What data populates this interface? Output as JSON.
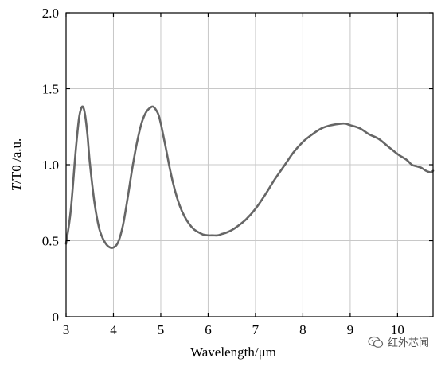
{
  "chart_data": {
    "type": "line",
    "title": "",
    "xlabel": "Wavelength/μm",
    "ylabel_italic": "T",
    "ylabel_rest": "/T0 /a.u.",
    "xlim": [
      3,
      10.75
    ],
    "ylim": [
      0,
      2.0
    ],
    "x_ticks": [
      3,
      4,
      5,
      6,
      7,
      8,
      9,
      10
    ],
    "x_tick_labels": [
      "3",
      "4",
      "5",
      "6",
      "7",
      "8",
      "9",
      "10"
    ],
    "y_ticks": [
      0,
      0.5,
      1.0,
      1.5,
      2.0
    ],
    "y_tick_labels": [
      "0",
      "0.5",
      "1.0",
      "1.5",
      "2.0"
    ],
    "grid": true,
    "line_color": "#666666",
    "series": [
      {
        "x": [
          3.0,
          3.1,
          3.2,
          3.27,
          3.32,
          3.36,
          3.4,
          3.45,
          3.5,
          3.6,
          3.7,
          3.8,
          3.9,
          4.0,
          4.1,
          4.2,
          4.3,
          4.4,
          4.5,
          4.6,
          4.7,
          4.8,
          4.85,
          4.9,
          4.95,
          5.0,
          5.1,
          5.2,
          5.3,
          5.4,
          5.5,
          5.6,
          5.7,
          5.8,
          5.9,
          6.0,
          6.1,
          6.2,
          6.3,
          6.4,
          6.5,
          6.6,
          6.8,
          7.0,
          7.2,
          7.4,
          7.6,
          7.8,
          8.0,
          8.2,
          8.4,
          8.6,
          8.8,
          8.9,
          9.0,
          9.2,
          9.4,
          9.6,
          9.8,
          10.0,
          10.1,
          10.2,
          10.3,
          10.4,
          10.5,
          10.6,
          10.7,
          10.75
        ],
        "y": [
          0.48,
          0.7,
          1.08,
          1.3,
          1.37,
          1.38,
          1.33,
          1.2,
          1.02,
          0.75,
          0.58,
          0.5,
          0.46,
          0.455,
          0.49,
          0.6,
          0.78,
          0.98,
          1.15,
          1.28,
          1.35,
          1.38,
          1.38,
          1.36,
          1.33,
          1.27,
          1.12,
          0.96,
          0.83,
          0.73,
          0.66,
          0.61,
          0.575,
          0.555,
          0.54,
          0.535,
          0.535,
          0.535,
          0.545,
          0.555,
          0.57,
          0.59,
          0.64,
          0.71,
          0.8,
          0.9,
          0.99,
          1.08,
          1.15,
          1.2,
          1.24,
          1.26,
          1.27,
          1.27,
          1.26,
          1.24,
          1.2,
          1.17,
          1.12,
          1.07,
          1.05,
          1.03,
          1.0,
          0.99,
          0.98,
          0.96,
          0.95,
          0.96
        ]
      }
    ]
  },
  "watermark": {
    "icon": "wechat-icon",
    "text": "红外芯闻"
  }
}
